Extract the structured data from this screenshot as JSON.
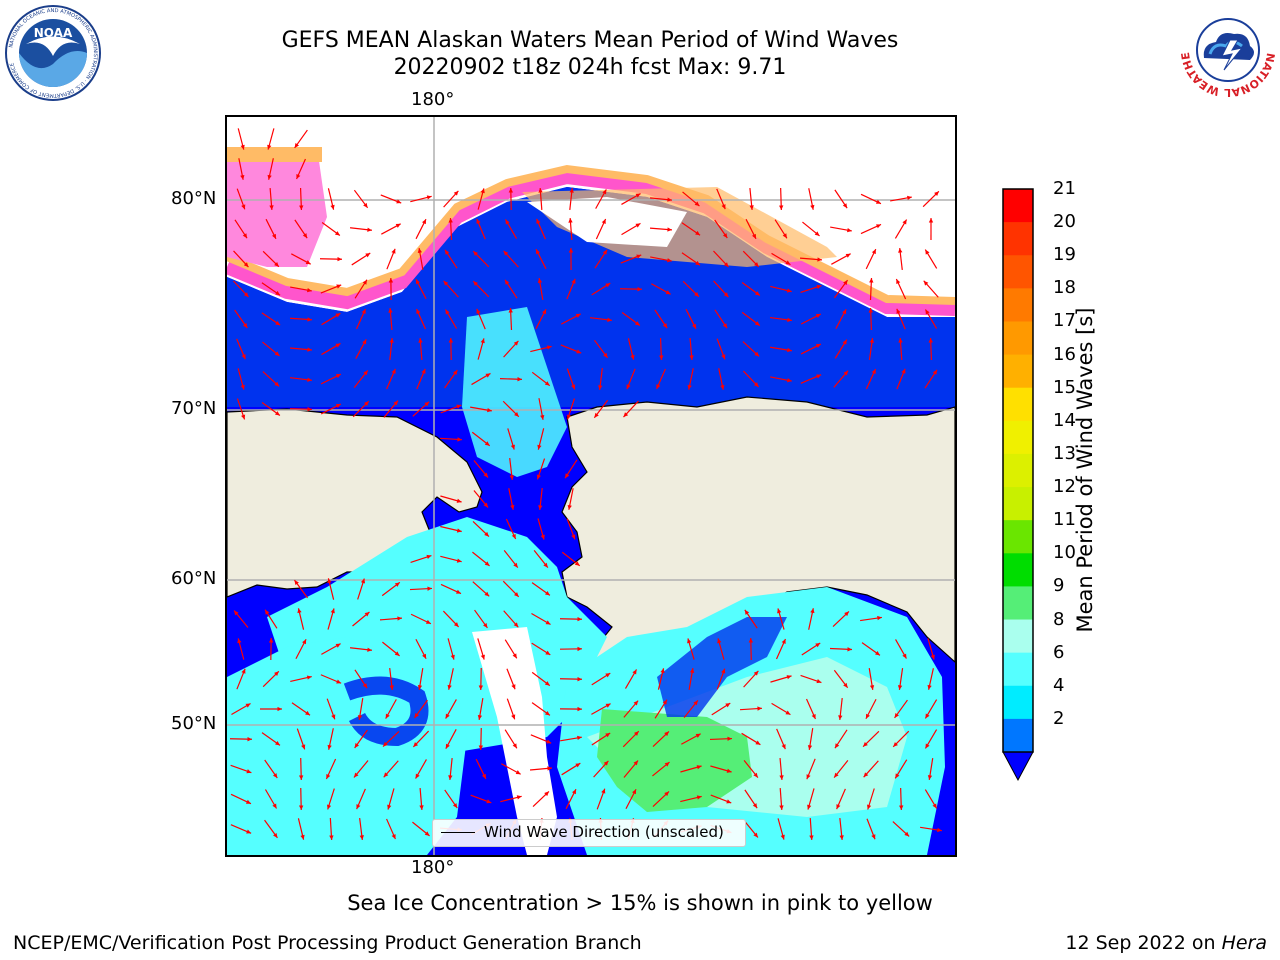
{
  "title": {
    "line1": "GEFS MEAN Alaskan Waters Mean Period of Wind Waves",
    "line2": "20220902 t18z 024h fcst   Max: 9.71"
  },
  "logos": {
    "left": {
      "icon": "noaa-logo",
      "ring_text": "NATIONAL OCEANIC AND ATMOSPHERIC ADMINISTRATION · U.S. DEPARTMENT OF COMMERCE",
      "center_text": "NOAA"
    },
    "right": {
      "icon": "nws-logo",
      "ring_text": "NATIONAL WEATHER SERVICE"
    }
  },
  "map": {
    "lon_labels": {
      "top": "180°",
      "bottom": "180°"
    },
    "lat_labels": [
      "80°N",
      "70°N",
      "60°N",
      "50°N"
    ],
    "legend": {
      "label": "Wind Wave Direction (unscaled)"
    },
    "colors": {
      "land": "#efedde",
      "coast": "#000000",
      "grid": "#b0b0b0",
      "arrow": "#ff0000",
      "ice_pink": "#ff55cc",
      "ice_orange": "#ffbb66"
    }
  },
  "colorbar": {
    "label": "Mean Period of Wind Waves [s]",
    "ticks": [
      "21",
      "20",
      "19",
      "18",
      "17",
      "16",
      "15",
      "14",
      "13",
      "12",
      "11",
      "10",
      "9",
      "8",
      "6",
      "4",
      "2"
    ],
    "colors": [
      "#ff0000",
      "#ff3300",
      "#ff5500",
      "#ff7a00",
      "#ff9900",
      "#ffb000",
      "#ffe000",
      "#f0f000",
      "#dcf000",
      "#c8f000",
      "#6ae600",
      "#00dd00",
      "#55ee77",
      "#aaffee",
      "#55ffff",
      "#00ecff",
      "#0077ff"
    ],
    "under_color": "#0000ff"
  },
  "subtitle": "Sea Ice Concentration > 15% is shown in pink to yellow",
  "footer": {
    "left": "NCEP/EMC/Verification Post Processing Product Generation Branch",
    "right_date": "12 Sep 2022 on ",
    "right_machine": "Hera"
  }
}
